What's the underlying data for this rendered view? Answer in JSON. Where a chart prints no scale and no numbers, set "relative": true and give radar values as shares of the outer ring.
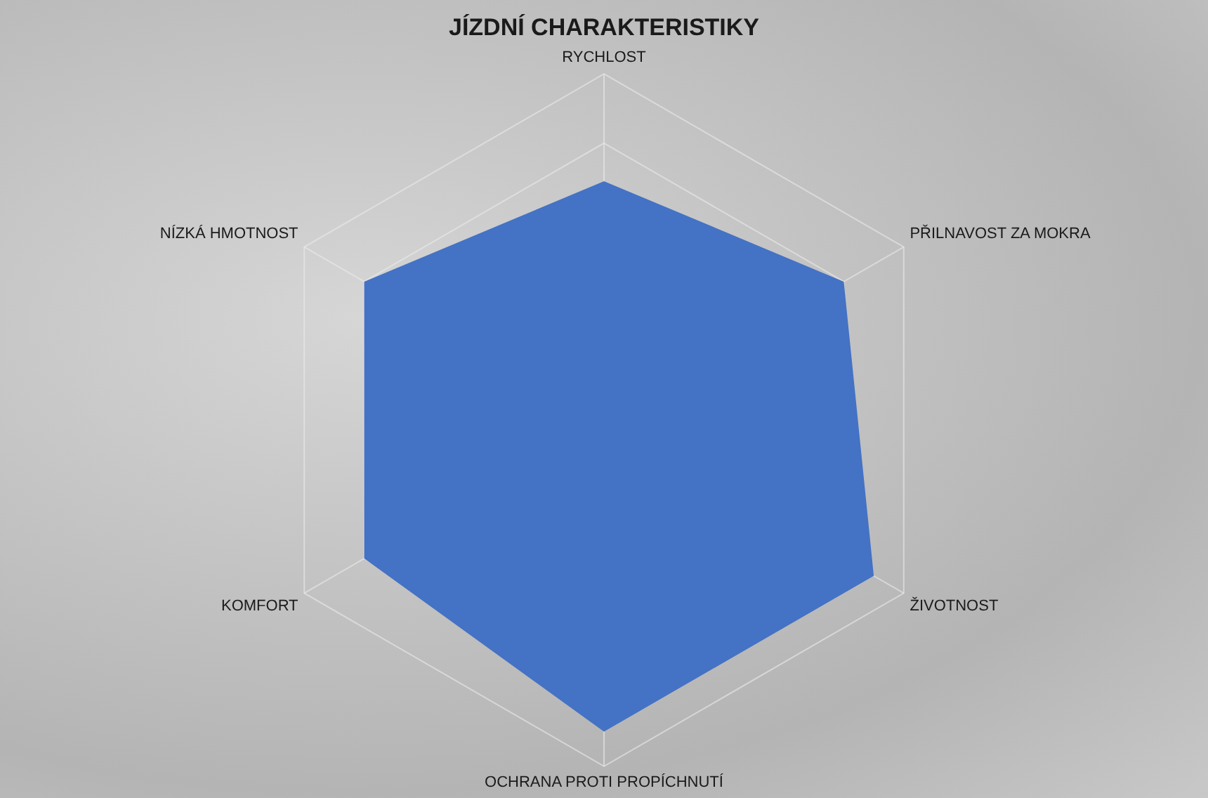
{
  "chart_data": {
    "type": "radar",
    "title": "JÍZDNÍ CHARAKTERISTIKY",
    "categories": [
      "RYCHLOST",
      "PŘILNAVOST ZA MOKRA",
      "ŽIVOTNOST",
      "OCHRANA PROTI PROPÍCHNUTÍ",
      "KOMFORT",
      "NÍZKÁ HMOTNOST"
    ],
    "series": [
      {
        "color": "#4472c4",
        "values": [
          0.69,
          0.8,
          0.9,
          0.9,
          0.8,
          0.8
        ]
      }
    ],
    "relative": true,
    "grid": true,
    "legend": false
  }
}
